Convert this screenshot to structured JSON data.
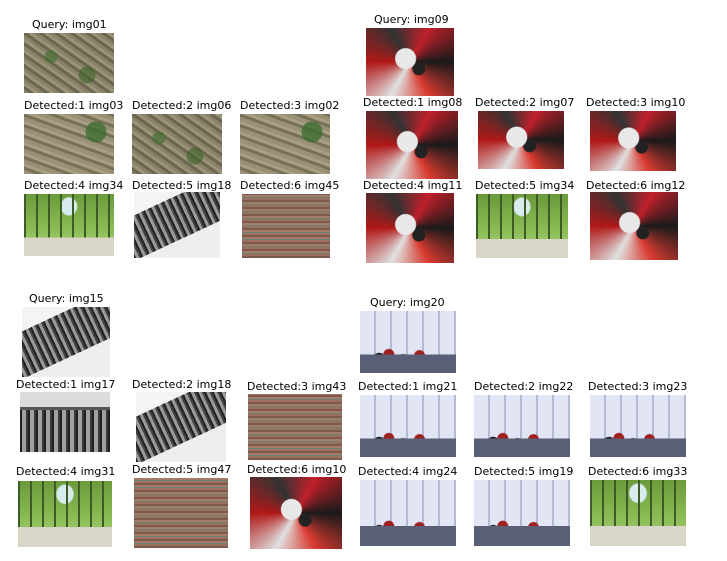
{
  "panels": [
    {
      "query": "Query: img01",
      "detected": [
        "Detected:1 img03",
        "Detected:2 img06",
        "Detected:3 img02",
        "Detected:4 img34",
        "Detected:5 img18",
        "Detected:6 img45"
      ]
    },
    {
      "query": "Query: img09",
      "detected": [
        "Detected:1 img08",
        "Detected:2 img07",
        "Detected:3 img10",
        "Detected:4 img11",
        "Detected:5 img34",
        "Detected:6 img12"
      ]
    },
    {
      "query": "Query: img15",
      "detected": [
        "Detected:1 img17",
        "Detected:2 img18",
        "Detected:3 img43",
        "Detected:4 img31",
        "Detected:5 img47",
        "Detected:6 img10"
      ]
    },
    {
      "query": "Query: img20",
      "detected": [
        "Detected:1 img21",
        "Detected:2 img22",
        "Detected:3 img23",
        "Detected:4 img24",
        "Detected:5 img19",
        "Detected:6 img33"
      ]
    }
  ]
}
